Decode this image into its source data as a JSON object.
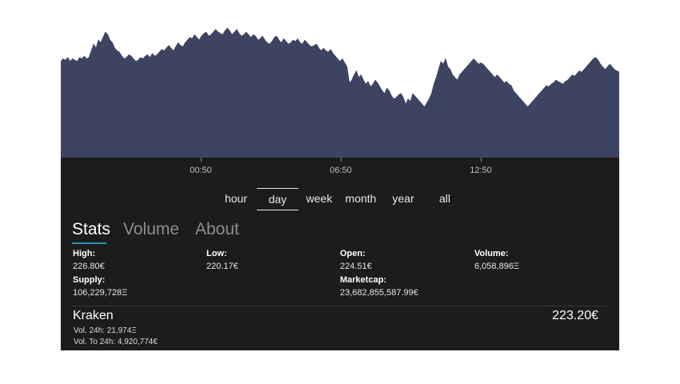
{
  "colors": {
    "chart_fill": "#3c4461",
    "dark_bg": "#1c1c1c",
    "tab_accent": "#2e8fb8"
  },
  "chart_data": {
    "type": "area",
    "x_ticks": [
      "00:50",
      "06:50",
      "12:50"
    ],
    "values": [
      72,
      74,
      73,
      75,
      72,
      74,
      73,
      72,
      75,
      74,
      76,
      74,
      75,
      80,
      85,
      82,
      88,
      86,
      90,
      94,
      92,
      88,
      86,
      82,
      80,
      79,
      76,
      74,
      75,
      77,
      76,
      74,
      72,
      73,
      75,
      74,
      76,
      77,
      75,
      78,
      76,
      77,
      79,
      81,
      80,
      82,
      84,
      82,
      80,
      83,
      86,
      84,
      83,
      86,
      88,
      90,
      89,
      92,
      90,
      88,
      91,
      93,
      94,
      91,
      92,
      94,
      96,
      94,
      93,
      92,
      95,
      97,
      95,
      92,
      94,
      96,
      93,
      91,
      92,
      94,
      92,
      90,
      92,
      91,
      88,
      89,
      91,
      88,
      86,
      85,
      87,
      90,
      91,
      88,
      86,
      89,
      87,
      85,
      86,
      88,
      87,
      89,
      86,
      85,
      88,
      86,
      84,
      83,
      84,
      85,
      82,
      80,
      82,
      80,
      79,
      81,
      78,
      76,
      74,
      72,
      74,
      71,
      68,
      56,
      58,
      62,
      65,
      60,
      62,
      58,
      55,
      57,
      53,
      55,
      58,
      56,
      53,
      50,
      48,
      52,
      50,
      46,
      44,
      45,
      47,
      48,
      45,
      40,
      44,
      42,
      48,
      46,
      44,
      42,
      40,
      38,
      41,
      44,
      48,
      55,
      60,
      66,
      72,
      70,
      74,
      68,
      66,
      62,
      60,
      58,
      62,
      64,
      66,
      68,
      70,
      72,
      74,
      72,
      70,
      71,
      70,
      68,
      66,
      64,
      62,
      60,
      62,
      60,
      58,
      56,
      57,
      55,
      54,
      50,
      48,
      46,
      44,
      42,
      40,
      38,
      40,
      42,
      44,
      46,
      48,
      50,
      52,
      54,
      53,
      55,
      56,
      58,
      57,
      56,
      55,
      57,
      58,
      60,
      62,
      61,
      63,
      65,
      64,
      66,
      68,
      70,
      72,
      74,
      75,
      73,
      70,
      68,
      66,
      68,
      70,
      68,
      66,
      65,
      64
    ],
    "ylim": [
      0,
      100
    ],
    "grid": false
  },
  "time_ranges": [
    "hour",
    "day",
    "week",
    "month",
    "year",
    "all"
  ],
  "selected_range": "day",
  "tabs": [
    "Stats",
    "Volume",
    "About"
  ],
  "selected_tab": "Stats",
  "stats": {
    "high": {
      "label": "High:",
      "value": "226.80€"
    },
    "low": {
      "label": "Low:",
      "value": "220.17€"
    },
    "open": {
      "label": "Open:",
      "value": "224.51€"
    },
    "volume": {
      "label": "Volume:",
      "value": "6,058,896Ξ"
    },
    "supply": {
      "label": "Supply:",
      "value": "106,229,728Ξ"
    },
    "marketcap": {
      "label": "Marketcap:",
      "value": "23,682,855,587.99€"
    }
  },
  "exchange": {
    "name": "Kraken",
    "price": "223.20€",
    "vol24": "Vol. 24h: 21,974Ξ",
    "volto24": "Vol. To 24h: 4,920,774€"
  }
}
